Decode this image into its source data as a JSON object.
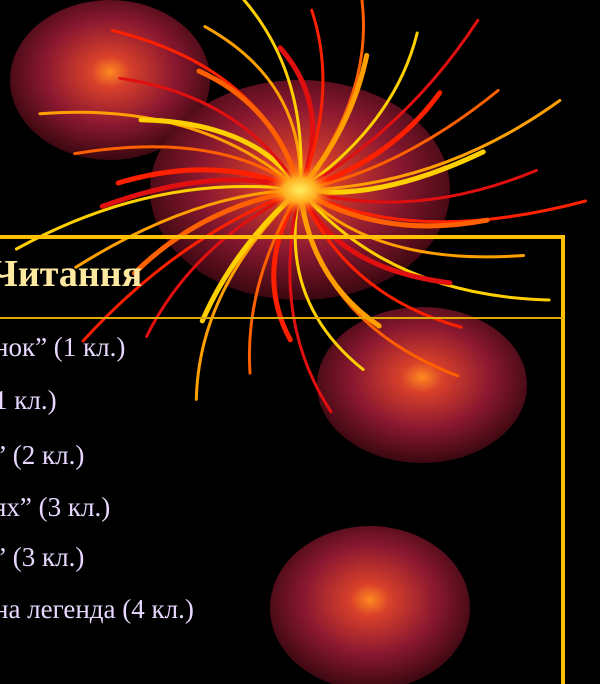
{
  "title": "Читання",
  "items": [
    "нок” (1 кл.)",
    "1 кл.)",
    "” (2 кл.)",
    "ях” (3 кл.)",
    "” (3 кл.)",
    "на легенда (4 кл.)"
  ]
}
